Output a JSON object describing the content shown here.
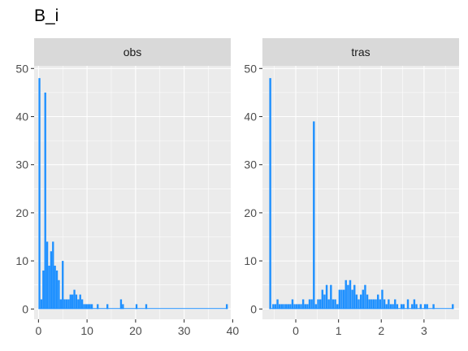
{
  "title": "B_i",
  "chart_data": {
    "type": "histogram",
    "title": "B_i",
    "bar_color": "#1e90ff",
    "panel_color": "#ebebeb",
    "strip_color": "#d9d9d9",
    "ylim": [
      0,
      50
    ],
    "yticks": [
      0,
      10,
      20,
      30,
      40,
      50
    ],
    "panels": [
      {
        "label": "obs",
        "xlim": [
          -0.9,
          39.6
        ],
        "xticks": [
          0,
          10,
          20,
          30,
          40
        ],
        "bins": [
          [
            0.0,
            48
          ],
          [
            0.4,
            2
          ],
          [
            0.8,
            8
          ],
          [
            1.2,
            45
          ],
          [
            1.6,
            14
          ],
          [
            2.0,
            9
          ],
          [
            2.4,
            12
          ],
          [
            2.8,
            14
          ],
          [
            3.2,
            9
          ],
          [
            3.6,
            8
          ],
          [
            4.0,
            6
          ],
          [
            4.4,
            2
          ],
          [
            4.8,
            10
          ],
          [
            5.2,
            2
          ],
          [
            5.6,
            2
          ],
          [
            6.0,
            2
          ],
          [
            6.4,
            3
          ],
          [
            6.8,
            3
          ],
          [
            7.2,
            4
          ],
          [
            7.6,
            3
          ],
          [
            8.0,
            2
          ],
          [
            8.4,
            3
          ],
          [
            8.8,
            2
          ],
          [
            9.2,
            1
          ],
          [
            9.6,
            1
          ],
          [
            10.0,
            1
          ],
          [
            10.4,
            1
          ],
          [
            10.8,
            1
          ],
          [
            12.0,
            1
          ],
          [
            14.0,
            1
          ],
          [
            16.8,
            2
          ],
          [
            17.2,
            1
          ],
          [
            20.0,
            1
          ],
          [
            22.0,
            1
          ],
          [
            38.6,
            1
          ]
        ],
        "bin_width": 0.39
      },
      {
        "label": "tras",
        "xlim": [
          -0.78,
          3.82
        ],
        "xticks": [
          0,
          1,
          2,
          3
        ],
        "bins": [
          [
            -0.62,
            48
          ],
          [
            -0.55,
            1
          ],
          [
            -0.5,
            1
          ],
          [
            -0.45,
            2
          ],
          [
            -0.4,
            1
          ],
          [
            -0.35,
            1
          ],
          [
            -0.3,
            1
          ],
          [
            -0.25,
            1
          ],
          [
            -0.2,
            1
          ],
          [
            -0.15,
            1
          ],
          [
            -0.1,
            2
          ],
          [
            -0.05,
            1
          ],
          [
            0.0,
            1
          ],
          [
            0.05,
            1
          ],
          [
            0.1,
            1
          ],
          [
            0.15,
            2
          ],
          [
            0.2,
            1
          ],
          [
            0.25,
            1
          ],
          [
            0.3,
            2
          ],
          [
            0.35,
            2
          ],
          [
            0.4,
            39
          ],
          [
            0.45,
            1
          ],
          [
            0.5,
            2
          ],
          [
            0.55,
            2
          ],
          [
            0.6,
            4
          ],
          [
            0.65,
            3
          ],
          [
            0.7,
            5
          ],
          [
            0.75,
            2
          ],
          [
            0.8,
            5
          ],
          [
            0.85,
            2
          ],
          [
            0.9,
            2
          ],
          [
            0.95,
            1
          ],
          [
            1.0,
            4
          ],
          [
            1.05,
            4
          ],
          [
            1.1,
            4
          ],
          [
            1.15,
            6
          ],
          [
            1.2,
            5
          ],
          [
            1.25,
            6
          ],
          [
            1.3,
            4
          ],
          [
            1.35,
            5
          ],
          [
            1.4,
            3
          ],
          [
            1.45,
            2
          ],
          [
            1.5,
            3
          ],
          [
            1.55,
            4
          ],
          [
            1.6,
            5
          ],
          [
            1.65,
            3
          ],
          [
            1.7,
            2
          ],
          [
            1.75,
            2
          ],
          [
            1.8,
            2
          ],
          [
            1.85,
            2
          ],
          [
            1.9,
            3
          ],
          [
            1.95,
            2
          ],
          [
            2.0,
            4
          ],
          [
            2.05,
            2
          ],
          [
            2.1,
            1
          ],
          [
            2.15,
            2
          ],
          [
            2.2,
            1
          ],
          [
            2.25,
            1
          ],
          [
            2.3,
            2
          ],
          [
            2.35,
            1
          ],
          [
            2.45,
            1
          ],
          [
            2.5,
            1
          ],
          [
            2.6,
            2
          ],
          [
            2.7,
            1
          ],
          [
            2.75,
            2
          ],
          [
            2.8,
            1
          ],
          [
            2.9,
            1
          ],
          [
            3.0,
            1
          ],
          [
            3.05,
            1
          ],
          [
            3.2,
            1
          ],
          [
            3.65,
            1
          ]
        ],
        "bin_width": 0.046
      }
    ]
  }
}
